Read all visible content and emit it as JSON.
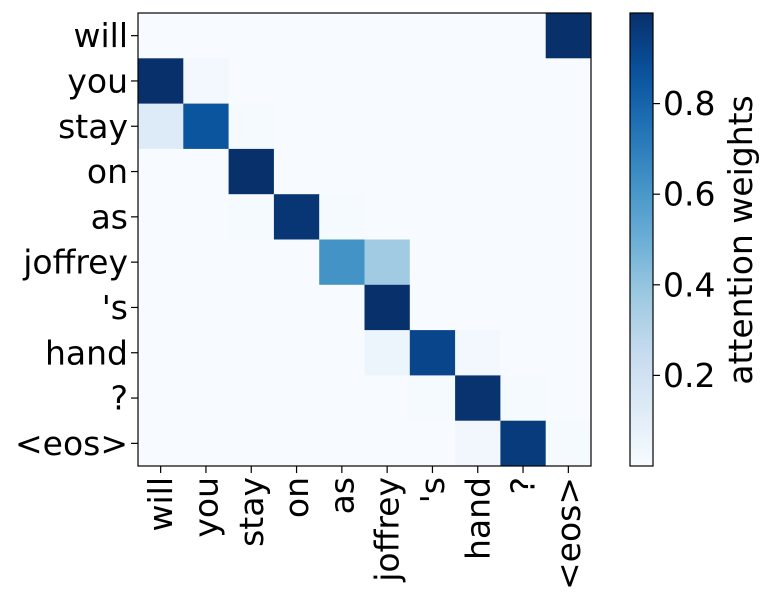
{
  "chart_data": {
    "type": "heatmap",
    "x": [
      "will",
      "you",
      "stay",
      "on",
      "as",
      "joffrey",
      "'s",
      "hand",
      "?",
      "<eos>"
    ],
    "y": [
      "will",
      "you",
      "stay",
      "on",
      "as",
      "joffrey",
      "'s",
      "hand",
      "?",
      "<eos>"
    ],
    "values": [
      [
        0.0,
        0.0,
        0.0,
        0.0,
        0.0,
        0.0,
        0.0,
        0.0,
        0.0,
        1.0
      ],
      [
        1.0,
        0.02,
        0.0,
        0.0,
        0.0,
        0.0,
        0.0,
        0.0,
        0.0,
        0.0
      ],
      [
        0.13,
        0.86,
        0.01,
        0.0,
        0.0,
        0.0,
        0.0,
        0.0,
        0.0,
        0.0
      ],
      [
        0.0,
        0.0,
        1.0,
        0.0,
        0.0,
        0.0,
        0.0,
        0.0,
        0.0,
        0.0
      ],
      [
        0.0,
        0.0,
        0.01,
        0.98,
        0.01,
        0.0,
        0.0,
        0.0,
        0.0,
        0.0
      ],
      [
        0.0,
        0.0,
        0.0,
        0.0,
        0.62,
        0.37,
        0.0,
        0.0,
        0.0,
        0.0
      ],
      [
        0.0,
        0.0,
        0.0,
        0.0,
        0.0,
        1.0,
        0.0,
        0.0,
        0.0,
        0.0
      ],
      [
        0.0,
        0.0,
        0.0,
        0.0,
        0.0,
        0.05,
        0.92,
        0.02,
        0.0,
        0.0
      ],
      [
        0.0,
        0.0,
        0.0,
        0.0,
        0.0,
        0.0,
        0.01,
        0.99,
        0.01,
        0.0
      ],
      [
        0.0,
        0.0,
        0.0,
        0.0,
        0.0,
        0.0,
        0.0,
        0.03,
        0.96,
        0.01
      ]
    ],
    "colorbar": {
      "label": "attention weights",
      "ticks": [
        0.2,
        0.4,
        0.6,
        0.8
      ],
      "tick_labels": [
        "0.2",
        "0.4",
        "0.6",
        "0.8"
      ],
      "range": [
        0.0,
        1.0
      ],
      "colormap": "Blues"
    }
  }
}
